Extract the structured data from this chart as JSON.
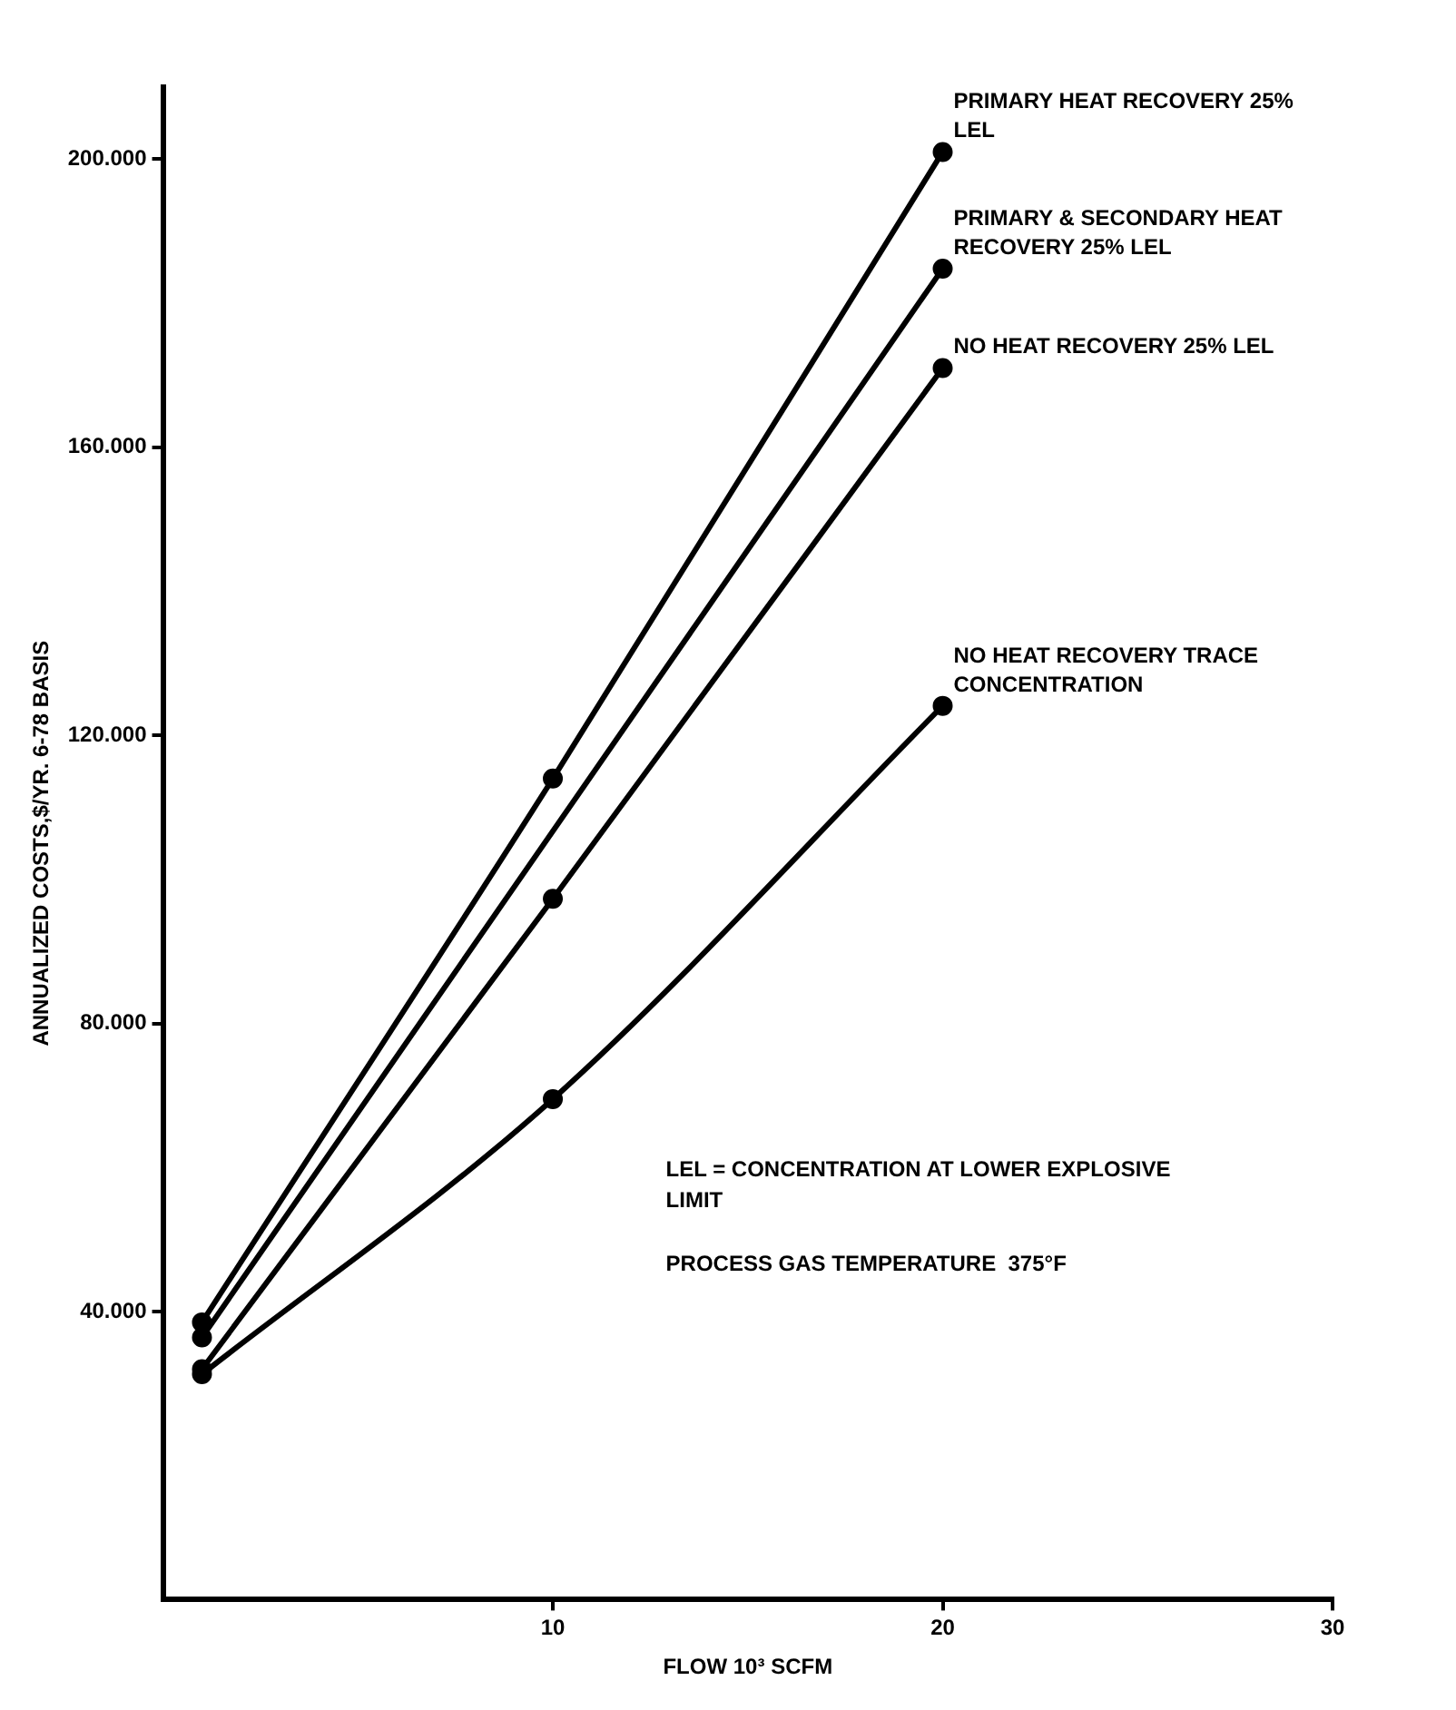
{
  "chart_data": {
    "type": "line",
    "xlabel": "FLOW 10³ SCFM",
    "ylabel": "ANNUALIZED COSTS,$/YR. 6-78 BASIS",
    "x": [
      1,
      10,
      20
    ],
    "series": [
      {
        "name": "PRIMARY HEAT RECOVERY 25% LEL",
        "color": "#000000",
        "values": [
          38500,
          114000,
          201000
        ]
      },
      {
        "name": "PRIMARY & SECONDARY HEAT RECOVERY 25% LEL",
        "color": "#000000",
        "x": [
          1,
          20
        ],
        "values": [
          36400,
          184800
        ]
      },
      {
        "name": "NO HEAT RECOVERY 25% LEL",
        "color": "#000000",
        "values": [
          32000,
          97300,
          171000
        ]
      },
      {
        "name": "NO HEAT RECOVERY TRACE CONCENTRATION",
        "color": "#000000",
        "values": [
          31300,
          69500,
          124100
        ]
      }
    ],
    "xlim": [
      0,
      30
    ],
    "xticks": [
      10,
      20,
      30
    ],
    "ylim": [
      0,
      210000
    ],
    "yticks": [
      {
        "value": 40000,
        "label": "40.000"
      },
      {
        "value": 80000,
        "label": "80.000"
      },
      {
        "value": 120000,
        "label": "120.000"
      },
      {
        "value": 160000,
        "label": "160.000"
      },
      {
        "value": 200000,
        "label": "200.000"
      }
    ],
    "annotations": [
      "LEL = CONCENTRATION AT LOWER EXPLOSIVE LIMIT",
      "PROCESS GAS TEMPERATURE  375°F"
    ],
    "marker": "circle",
    "line_style": "solid",
    "grid": false,
    "legend": false
  }
}
